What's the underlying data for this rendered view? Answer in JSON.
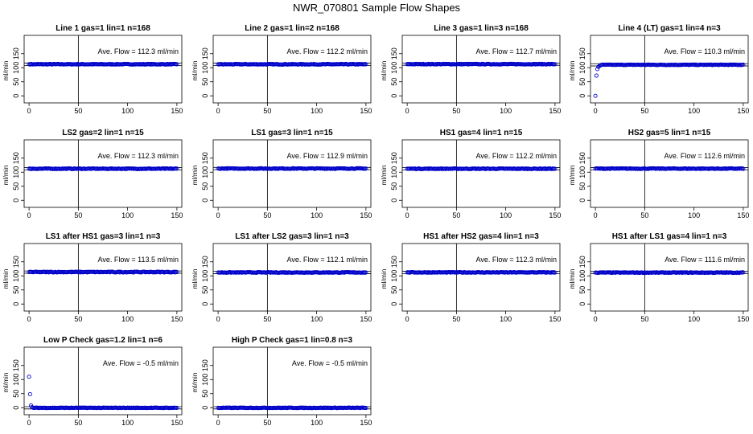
{
  "page": {
    "title": "NWR_070801  Sample Flow Shapes"
  },
  "colors": {
    "points": "#0000cc",
    "axes": "#000000",
    "background": "#ffffff"
  },
  "axes_common": {
    "xlim": [
      -5,
      155
    ],
    "ylim": [
      -25,
      215
    ],
    "xticks": [
      0,
      50,
      100,
      150
    ],
    "yticks": [
      0,
      50,
      100,
      150
    ],
    "ylabel": "ml/min",
    "vline_x": 50
  },
  "chart_data": [
    {
      "type": "scatter",
      "title": "Line 1 gas=1 lin=1 n=168",
      "annotation": "Ave. Flow =  112.3  ml/min",
      "hline": 112.3,
      "y_start": [
        112.3
      ],
      "y_noise": 1.2
    },
    {
      "type": "scatter",
      "title": "Line 2 gas=1 lin=2 n=168",
      "annotation": "Ave. Flow =  112.2  ml/min",
      "hline": 112.2,
      "y_start": [
        112.2
      ],
      "y_noise": 1.2
    },
    {
      "type": "scatter",
      "title": "Line 3 gas=1 lin=3 n=168",
      "annotation": "Ave. Flow =  112.7  ml/min",
      "hline": 112.7,
      "y_start": [
        112.7
      ],
      "y_noise": 1.2
    },
    {
      "type": "scatter",
      "title": "Line 4 (LT) gas=1 lin=4 n=3",
      "annotation": "Ave. Flow =  110.3  ml/min",
      "hline": 110.3,
      "y_start": [
        0,
        72,
        95,
        103,
        106,
        108
      ],
      "y_noise": 1.0
    },
    {
      "type": "scatter",
      "title": "LS2 gas=2 lin=1 n=15",
      "annotation": "Ave. Flow =  112.3  ml/min",
      "hline": 112.3,
      "y_start": [
        112.3
      ],
      "y_noise": 1.2
    },
    {
      "type": "scatter",
      "title": "LS1 gas=3 lin=1 n=15",
      "annotation": "Ave. Flow =  112.9  ml/min",
      "hline": 112.9,
      "y_start": [
        112.9
      ],
      "y_noise": 1.2
    },
    {
      "type": "scatter",
      "title": "HS1 gas=4 lin=1 n=15",
      "annotation": "Ave. Flow =  112.2  ml/min",
      "hline": 112.2,
      "y_start": [
        112.2
      ],
      "y_noise": 1.2
    },
    {
      "type": "scatter",
      "title": "HS2 gas=5 lin=1 n=15",
      "annotation": "Ave. Flow =  112.6  ml/min",
      "hline": 112.6,
      "y_start": [
        112.6
      ],
      "y_noise": 1.2
    },
    {
      "type": "scatter",
      "title": "LS1 after HS1 gas=3 lin=1 n=3",
      "annotation": "Ave. Flow =  113.5  ml/min",
      "hline": 113.5,
      "y_start": [
        113.5
      ],
      "y_noise": 1.4
    },
    {
      "type": "scatter",
      "title": "LS1 after LS2 gas=3 lin=1 n=3",
      "annotation": "Ave. Flow =  112.1  ml/min",
      "hline": 112.1,
      "y_start": [
        112.1
      ],
      "y_noise": 1.2
    },
    {
      "type": "scatter",
      "title": "HS1 after HS2 gas=4 lin=1 n=3",
      "annotation": "Ave. Flow =  112.3  ml/min",
      "hline": 112.3,
      "y_start": [
        112.3
      ],
      "y_noise": 1.2
    },
    {
      "type": "scatter",
      "title": "HS1 after LS1 gas=4 lin=1 n=3",
      "annotation": "Ave. Flow =  111.6  ml/min",
      "hline": 111.6,
      "y_start": [
        111.6
      ],
      "y_noise": 1.2
    },
    {
      "type": "scatter",
      "title": "Low P Check gas=1.2 lin=1 n=6",
      "annotation": "Ave. Flow =  -0.5  ml/min",
      "hline": -0.5,
      "y_start": [
        110,
        48,
        8,
        2
      ],
      "y_noise": 0.8
    },
    {
      "type": "scatter",
      "title": "High P Check gas=1 lin=0.8 n=3",
      "annotation": "Ave. Flow =  -0.5  ml/min",
      "hline": -0.5,
      "y_start": [
        -0.5
      ],
      "y_noise": 0.8
    }
  ]
}
